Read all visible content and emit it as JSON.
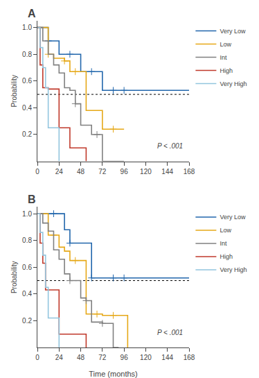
{
  "chart_data": [
    {
      "type": "step",
      "title": "A",
      "ylabel": "Probability",
      "annotations": [
        "P < .001"
      ],
      "xlim": [
        0,
        168
      ],
      "xticks": [
        0,
        24,
        48,
        72,
        96,
        120,
        144,
        168
      ],
      "ylim": [
        0,
        1.05
      ],
      "yticks": [
        0.2,
        0.4,
        0.6,
        0.8,
        {
          "value": 1.0,
          "label": "1.0"
        }
      ],
      "reference_line": 0.5,
      "grid": false,
      "legend": "upper right",
      "marker": "cross",
      "series": [
        {
          "name": "Very Low",
          "color": "#2166ac",
          "x": [
            0,
            6,
            12,
            24,
            36,
            48,
            60,
            72,
            84,
            96,
            168
          ],
          "values": [
            1.0,
            1.0,
            0.9,
            0.8,
            0.8,
            0.67,
            0.67,
            0.53,
            0.53,
            0.53,
            0.53
          ],
          "censors_x": [
            12,
            36,
            60,
            84,
            96
          ],
          "censors_y": [
            0.9,
            0.8,
            0.67,
            0.53,
            0.53
          ]
        },
        {
          "name": "Low",
          "color": "#e6a817",
          "x": [
            0,
            6,
            12,
            18,
            24,
            30,
            36,
            42,
            48,
            54,
            60,
            72,
            84,
            96
          ],
          "values": [
            1.0,
            1.0,
            0.8,
            0.77,
            0.77,
            0.75,
            0.67,
            0.67,
            0.67,
            0.38,
            0.38,
            0.24,
            0.24,
            0.24
          ],
          "censors_x": [
            12,
            30,
            42,
            84
          ],
          "censors_y": [
            0.8,
            0.75,
            0.67,
            0.24
          ]
        },
        {
          "name": "Int",
          "color": "#808080",
          "x": [
            0,
            6,
            12,
            18,
            24,
            30,
            36,
            42,
            48,
            54,
            60,
            66,
            72,
            78,
            84,
            90,
            96
          ],
          "values": [
            1.0,
            0.9,
            0.8,
            0.72,
            0.66,
            0.55,
            0.53,
            0.43,
            0.27,
            0.27,
            0.2,
            0.2,
            0.0,
            0.0,
            0.0,
            0.0,
            0.0
          ],
          "censors_x": [
            42,
            66
          ],
          "censors_y": [
            0.43,
            0.2
          ]
        },
        {
          "name": "High",
          "color": "#c0392b",
          "x": [
            0,
            3,
            6,
            9,
            12,
            18,
            24,
            30,
            36,
            42,
            48,
            54
          ],
          "values": [
            1.0,
            0.72,
            0.55,
            0.55,
            0.54,
            0.54,
            0.25,
            0.25,
            0.1,
            0.1,
            0.1,
            0.0
          ],
          "censors_x": [],
          "censors_y": []
        },
        {
          "name": "Very High",
          "color": "#92c5de",
          "x": [
            0,
            3,
            6,
            9,
            12,
            18,
            24
          ],
          "values": [
            1.0,
            0.85,
            0.7,
            0.55,
            0.25,
            0.25,
            0.0
          ],
          "censors_x": [],
          "censors_y": []
        }
      ]
    },
    {
      "type": "step",
      "title": "B",
      "xlabel": "Time (months)",
      "ylabel": "Probability",
      "annotations": [
        "P < .001"
      ],
      "xlim": [
        0,
        168
      ],
      "xticks": [
        0,
        24,
        48,
        72,
        96,
        120,
        144,
        168
      ],
      "ylim": [
        0,
        1.05
      ],
      "yticks": [
        0.2,
        0.4,
        0.6,
        0.8,
        {
          "value": 1.0,
          "label": "1.0"
        }
      ],
      "reference_line": 0.5,
      "grid": false,
      "legend": "upper right",
      "marker": "cross",
      "series": [
        {
          "name": "Very Low",
          "color": "#2166ac",
          "x": [
            0,
            6,
            12,
            18,
            24,
            30,
            36,
            48,
            60,
            72,
            84,
            96,
            168
          ],
          "values": [
            1.0,
            1.0,
            1.0,
            1.0,
            1.0,
            0.88,
            0.78,
            0.78,
            0.52,
            0.52,
            0.52,
            0.52,
            0.52
          ],
          "censors_x": [
            18,
            36,
            60,
            84,
            96
          ],
          "censors_y": [
            1.0,
            0.78,
            0.52,
            0.52,
            0.52
          ]
        },
        {
          "name": "Low",
          "color": "#e6a817",
          "x": [
            0,
            6,
            12,
            18,
            24,
            30,
            36,
            42,
            48,
            54,
            60,
            66,
            72,
            84,
            96,
            100
          ],
          "values": [
            1.0,
            1.0,
            0.84,
            0.84,
            0.75,
            0.72,
            0.65,
            0.65,
            0.65,
            0.25,
            0.25,
            0.25,
            0.24,
            0.24,
            0.24,
            0.0
          ],
          "censors_x": [
            18,
            42,
            66,
            84
          ],
          "censors_y": [
            0.84,
            0.65,
            0.25,
            0.24
          ]
        },
        {
          "name": "Int",
          "color": "#808080",
          "x": [
            0,
            6,
            12,
            18,
            24,
            30,
            36,
            42,
            48,
            54,
            60,
            66,
            72,
            78,
            84,
            90
          ],
          "values": [
            1.0,
            0.93,
            0.87,
            0.73,
            0.66,
            0.55,
            0.5,
            0.5,
            0.37,
            0.35,
            0.19,
            0.19,
            0.18,
            0.18,
            0.0,
            0.0
          ],
          "censors_x": [
            36,
            54,
            72
          ],
          "censors_y": [
            0.5,
            0.35,
            0.18
          ]
        },
        {
          "name": "High",
          "color": "#c0392b",
          "x": [
            0,
            3,
            6,
            9,
            12,
            18,
            24,
            30,
            36,
            42,
            48,
            54
          ],
          "values": [
            1.0,
            0.78,
            0.63,
            0.43,
            0.43,
            0.43,
            0.1,
            0.1,
            0.1,
            0.1,
            0.1,
            0.0
          ],
          "censors_x": [],
          "censors_y": []
        },
        {
          "name": "Very High",
          "color": "#92c5de",
          "x": [
            0,
            3,
            6,
            9,
            12,
            18,
            24
          ],
          "values": [
            1.0,
            0.86,
            0.69,
            0.45,
            0.22,
            0.22,
            0.0
          ],
          "censors_x": [],
          "censors_y": []
        }
      ]
    }
  ]
}
